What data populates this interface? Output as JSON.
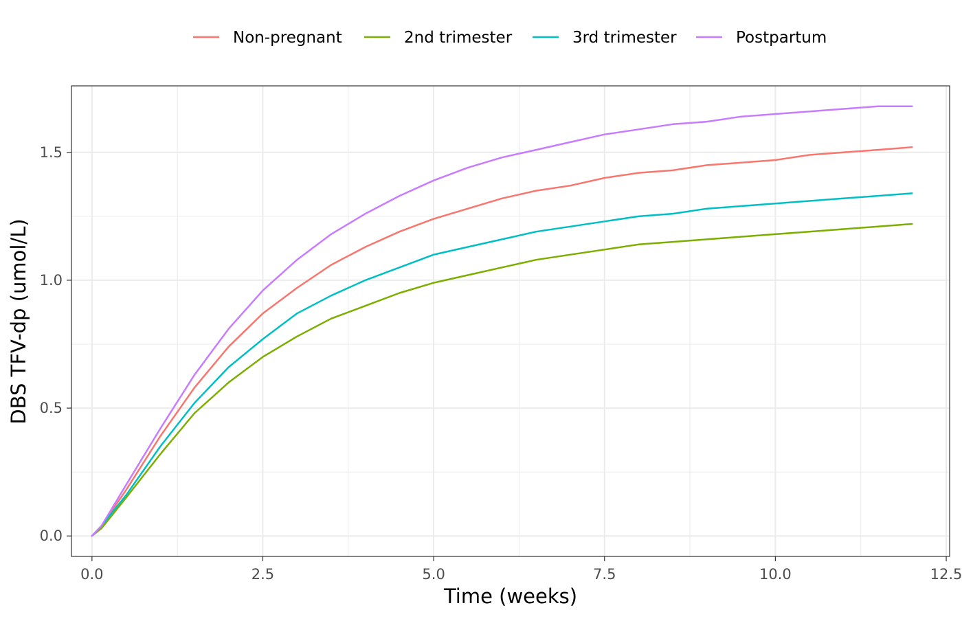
{
  "chart_data": {
    "type": "line",
    "title": "",
    "xlabel": "Time (weeks)",
    "ylabel": "DBS TFV-dp (umol/L)",
    "xlim": [
      -0.3,
      12.55
    ],
    "ylim": [
      -0.08,
      1.76
    ],
    "xticks": [
      0.0,
      2.5,
      5.0,
      7.5,
      10.0,
      12.5
    ],
    "xtick_labels": [
      "0.0",
      "2.5",
      "5.0",
      "7.5",
      "10.0",
      "12.5"
    ],
    "yticks": [
      0.0,
      0.5,
      1.0,
      1.5
    ],
    "ytick_labels": [
      "0.0",
      "0.5",
      "1.0",
      "1.5"
    ],
    "grid": true,
    "legend_position": "top",
    "x": [
      0,
      0.14,
      0.5,
      1,
      1.5,
      2,
      2.5,
      3,
      3.5,
      4,
      4.5,
      5,
      5.5,
      6,
      6.5,
      7,
      7.5,
      8,
      8.5,
      9,
      9.5,
      10,
      10.5,
      11,
      11.5,
      12
    ],
    "series": [
      {
        "name": "Non-pregnant",
        "color": "#F8766D",
        "values": [
          0,
          0.04,
          0.18,
          0.39,
          0.58,
          0.74,
          0.87,
          0.97,
          1.06,
          1.13,
          1.19,
          1.24,
          1.28,
          1.32,
          1.35,
          1.37,
          1.4,
          1.42,
          1.43,
          1.45,
          1.46,
          1.47,
          1.49,
          1.5,
          1.51,
          1.52
        ]
      },
      {
        "name": "2nd trimester",
        "color": "#7CAE00",
        "values": [
          0,
          0.03,
          0.15,
          0.32,
          0.48,
          0.6,
          0.7,
          0.78,
          0.85,
          0.9,
          0.95,
          0.99,
          1.02,
          1.05,
          1.08,
          1.1,
          1.12,
          1.14,
          1.15,
          1.16,
          1.17,
          1.18,
          1.19,
          1.2,
          1.21,
          1.22
        ]
      },
      {
        "name": "3rd trimester",
        "color": "#00BFC4",
        "values": [
          0,
          0.04,
          0.16,
          0.35,
          0.52,
          0.66,
          0.77,
          0.87,
          0.94,
          1.0,
          1.05,
          1.1,
          1.13,
          1.16,
          1.19,
          1.21,
          1.23,
          1.25,
          1.26,
          1.28,
          1.29,
          1.3,
          1.31,
          1.32,
          1.33,
          1.34
        ]
      },
      {
        "name": "Postpartum",
        "color": "#C77CFF",
        "values": [
          0,
          0.04,
          0.2,
          0.42,
          0.63,
          0.81,
          0.96,
          1.08,
          1.18,
          1.26,
          1.33,
          1.39,
          1.44,
          1.48,
          1.51,
          1.54,
          1.57,
          1.59,
          1.61,
          1.62,
          1.64,
          1.65,
          1.66,
          1.67,
          1.68,
          1.68
        ]
      }
    ]
  }
}
